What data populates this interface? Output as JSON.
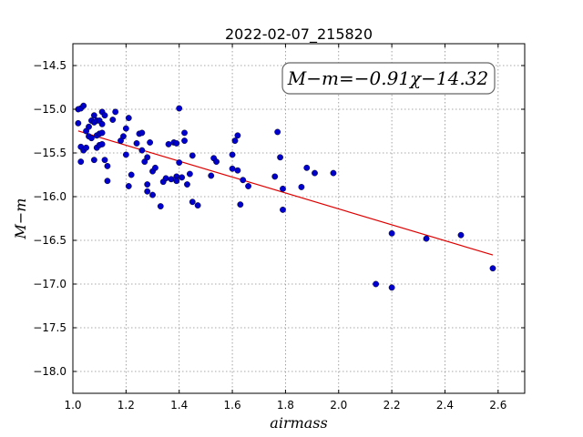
{
  "chart_data": {
    "type": "scatter",
    "title": "2022-02-07_215820",
    "xlabel": "airmass",
    "ylabel": "M−m",
    "xlim": [
      1.0,
      2.7
    ],
    "ylim": [
      -18.25,
      -14.25
    ],
    "xticks": [
      "1.0",
      "1.2",
      "1.4",
      "1.6",
      "1.8",
      "2.0",
      "2.2",
      "2.4",
      "2.6"
    ],
    "yticks": [
      "−14.5",
      "−15.0",
      "−15.5",
      "−16.0",
      "−16.5",
      "−17.0",
      "−17.5",
      "−18.0"
    ],
    "grid": true,
    "annotation": "M−m=−0.91χ−14.32",
    "annotation_position": "top-right",
    "fit": {
      "slope": -0.91,
      "intercept": -14.32,
      "x_range": [
        1.02,
        2.58
      ],
      "color": "#dd0000"
    },
    "marker_color": "#0000cc",
    "points": [
      {
        "x": 1.02,
        "y": -15.0
      },
      {
        "x": 1.03,
        "y": -14.99
      },
      {
        "x": 1.04,
        "y": -14.96
      },
      {
        "x": 1.02,
        "y": -15.16
      },
      {
        "x": 1.03,
        "y": -15.43
      },
      {
        "x": 1.04,
        "y": -15.47
      },
      {
        "x": 1.05,
        "y": -15.44
      },
      {
        "x": 1.03,
        "y": -15.6
      },
      {
        "x": 1.05,
        "y": -15.25
      },
      {
        "x": 1.06,
        "y": -15.2
      },
      {
        "x": 1.06,
        "y": -15.31
      },
      {
        "x": 1.07,
        "y": -15.13
      },
      {
        "x": 1.07,
        "y": -15.33
      },
      {
        "x": 1.08,
        "y": -15.07
      },
      {
        "x": 1.08,
        "y": -15.15
      },
      {
        "x": 1.09,
        "y": -15.13
      },
      {
        "x": 1.09,
        "y": -15.3
      },
      {
        "x": 1.1,
        "y": -15.13
      },
      {
        "x": 1.1,
        "y": -15.28
      },
      {
        "x": 1.11,
        "y": -15.03
      },
      {
        "x": 1.11,
        "y": -15.17
      },
      {
        "x": 1.12,
        "y": -15.07
      },
      {
        "x": 1.11,
        "y": -15.27
      },
      {
        "x": 1.08,
        "y": -15.58
      },
      {
        "x": 1.09,
        "y": -15.44
      },
      {
        "x": 1.1,
        "y": -15.41
      },
      {
        "x": 1.11,
        "y": -15.4
      },
      {
        "x": 1.12,
        "y": -15.58
      },
      {
        "x": 1.13,
        "y": -15.65
      },
      {
        "x": 1.13,
        "y": -15.82
      },
      {
        "x": 1.15,
        "y": -15.12
      },
      {
        "x": 1.16,
        "y": -15.03
      },
      {
        "x": 1.18,
        "y": -15.36
      },
      {
        "x": 1.19,
        "y": -15.31
      },
      {
        "x": 1.2,
        "y": -15.22
      },
      {
        "x": 1.21,
        "y": -15.1
      },
      {
        "x": 1.2,
        "y": -15.52
      },
      {
        "x": 1.22,
        "y": -15.75
      },
      {
        "x": 1.21,
        "y": -15.88
      },
      {
        "x": 1.24,
        "y": -15.39
      },
      {
        "x": 1.25,
        "y": -15.28
      },
      {
        "x": 1.26,
        "y": -15.27
      },
      {
        "x": 1.26,
        "y": -15.47
      },
      {
        "x": 1.27,
        "y": -15.6
      },
      {
        "x": 1.28,
        "y": -15.55
      },
      {
        "x": 1.29,
        "y": -15.38
      },
      {
        "x": 1.28,
        "y": -15.86
      },
      {
        "x": 1.28,
        "y": -15.94
      },
      {
        "x": 1.3,
        "y": -15.71
      },
      {
        "x": 1.31,
        "y": -15.67
      },
      {
        "x": 1.3,
        "y": -15.98
      },
      {
        "x": 1.33,
        "y": -16.11
      },
      {
        "x": 1.34,
        "y": -15.83
      },
      {
        "x": 1.35,
        "y": -15.79
      },
      {
        "x": 1.36,
        "y": -15.4
      },
      {
        "x": 1.37,
        "y": -15.8
      },
      {
        "x": 1.38,
        "y": -15.38
      },
      {
        "x": 1.39,
        "y": -15.39
      },
      {
        "x": 1.39,
        "y": -15.77
      },
      {
        "x": 1.39,
        "y": -15.82
      },
      {
        "x": 1.4,
        "y": -14.99
      },
      {
        "x": 1.4,
        "y": -15.61
      },
      {
        "x": 1.41,
        "y": -15.78
      },
      {
        "x": 1.42,
        "y": -15.27
      },
      {
        "x": 1.42,
        "y": -15.36
      },
      {
        "x": 1.43,
        "y": -15.86
      },
      {
        "x": 1.44,
        "y": -15.74
      },
      {
        "x": 1.45,
        "y": -15.53
      },
      {
        "x": 1.45,
        "y": -16.06
      },
      {
        "x": 1.47,
        "y": -16.1
      },
      {
        "x": 1.52,
        "y": -15.76
      },
      {
        "x": 1.53,
        "y": -15.56
      },
      {
        "x": 1.54,
        "y": -15.6
      },
      {
        "x": 1.6,
        "y": -15.52
      },
      {
        "x": 1.6,
        "y": -15.68
      },
      {
        "x": 1.61,
        "y": -15.36
      },
      {
        "x": 1.62,
        "y": -15.7
      },
      {
        "x": 1.62,
        "y": -15.3
      },
      {
        "x": 1.63,
        "y": -16.09
      },
      {
        "x": 1.64,
        "y": -15.81
      },
      {
        "x": 1.66,
        "y": -15.88
      },
      {
        "x": 1.76,
        "y": -15.77
      },
      {
        "x": 1.77,
        "y": -15.26
      },
      {
        "x": 1.78,
        "y": -15.55
      },
      {
        "x": 1.79,
        "y": -15.91
      },
      {
        "x": 1.79,
        "y": -16.15
      },
      {
        "x": 1.86,
        "y": -15.89
      },
      {
        "x": 1.88,
        "y": -15.67
      },
      {
        "x": 1.91,
        "y": -15.73
      },
      {
        "x": 1.98,
        "y": -15.73
      },
      {
        "x": 2.14,
        "y": -17.0
      },
      {
        "x": 2.2,
        "y": -16.42
      },
      {
        "x": 2.2,
        "y": -17.04
      },
      {
        "x": 2.33,
        "y": -16.48
      },
      {
        "x": 2.46,
        "y": -16.44
      },
      {
        "x": 2.58,
        "y": -16.82
      }
    ]
  }
}
